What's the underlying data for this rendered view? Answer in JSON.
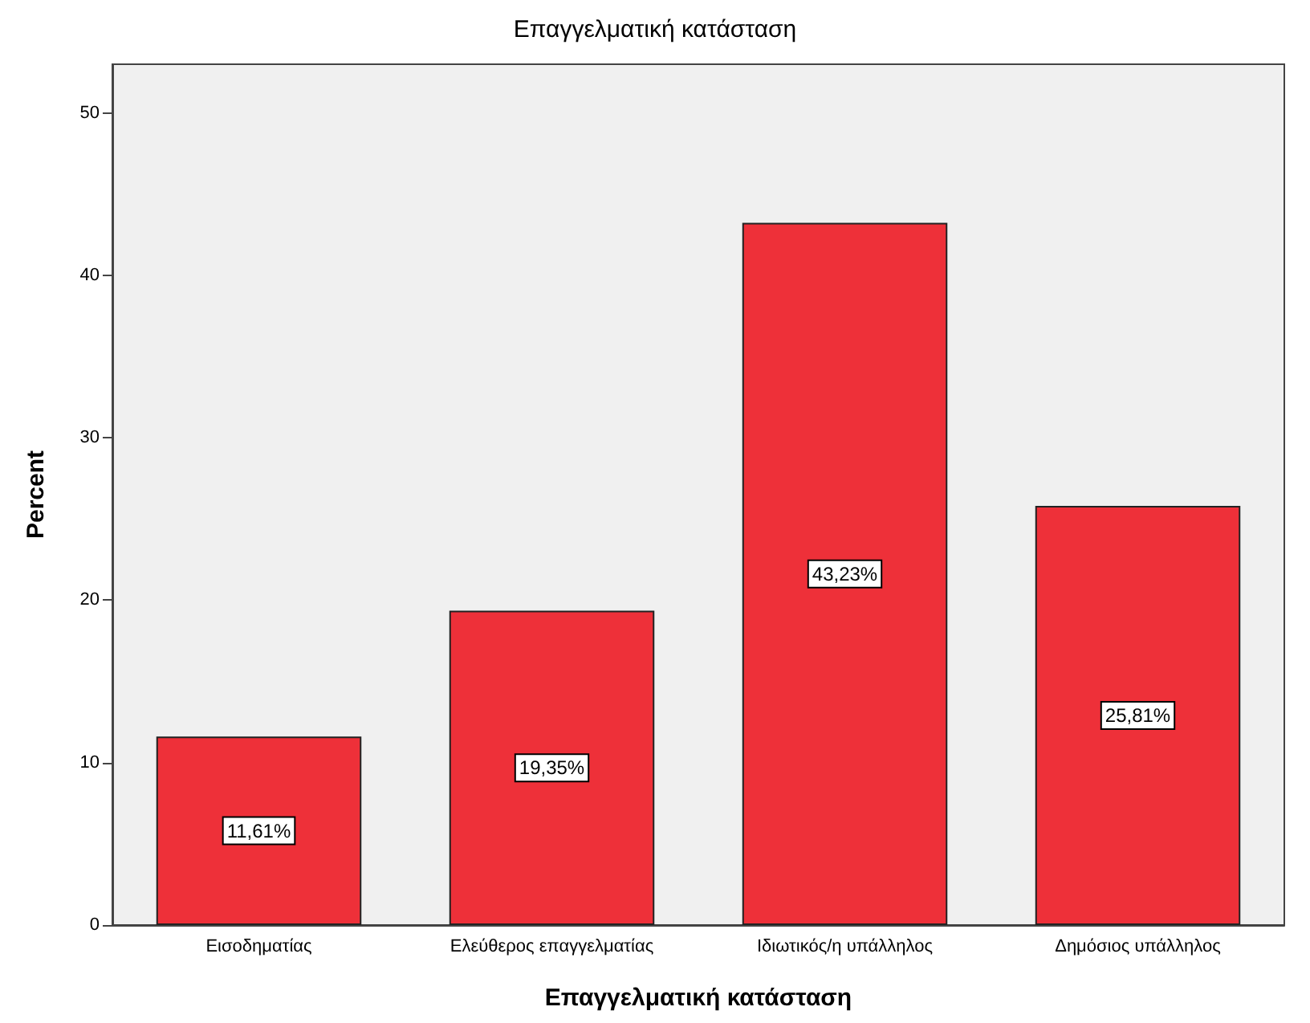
{
  "chart_data": {
    "type": "bar",
    "title": "Επαγγελματική κατάσταση",
    "xlabel": "Επαγγελματική κατάσταση",
    "ylabel": "Percent",
    "categories": [
      "Εισοδηματίας",
      "Ελεύθερος επαγγελματίας",
      "Ιδιωτικός/η υπάλληλος",
      "Δημόσιος υπάλληλος"
    ],
    "values": [
      11.61,
      19.35,
      43.23,
      25.81
    ],
    "value_labels": [
      "11,61%",
      "19,35%",
      "43,23%",
      "25,81%"
    ],
    "color": "#ee3039",
    "ylim": [
      0,
      53
    ],
    "yticks": [
      0,
      10,
      20,
      30,
      40,
      50
    ],
    "grid": false
  }
}
